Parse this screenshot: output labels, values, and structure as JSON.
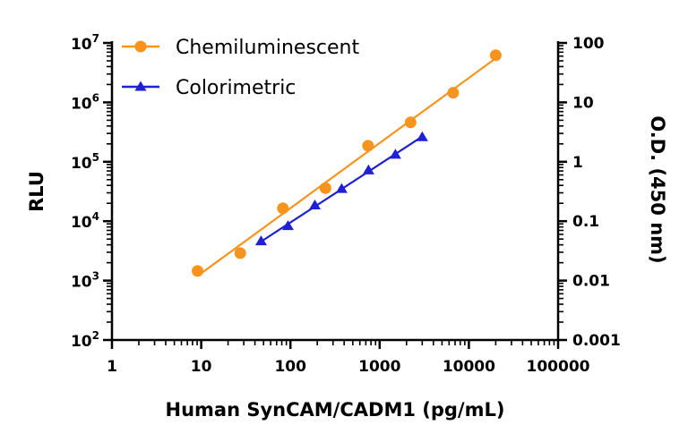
{
  "chart_data": {
    "type": "scatter",
    "title": "",
    "xlabel": "Human SynCAM/CADM1 (pg/mL)",
    "ylabel": "RLU",
    "y2label": "O.D. (450 nm)",
    "x_scale": "log",
    "y_scale": "log",
    "y2_scale": "log",
    "xlim": [
      1,
      100000
    ],
    "ylim": [
      100,
      10000000
    ],
    "y2lim": [
      0.001,
      100
    ],
    "grid": false,
    "legend_position": "top-left",
    "x_ticks": [
      "1",
      "10",
      "100",
      "1000",
      "10000",
      "100000"
    ],
    "y_ticks": [
      {
        "base": "10",
        "exp": "2"
      },
      {
        "base": "10",
        "exp": "3"
      },
      {
        "base": "10",
        "exp": "4"
      },
      {
        "base": "10",
        "exp": "5"
      },
      {
        "base": "10",
        "exp": "6"
      },
      {
        "base": "10",
        "exp": "7"
      }
    ],
    "y2_ticks": [
      "0.001",
      "0.01",
      "0.1",
      "1",
      "10",
      "100"
    ],
    "series": [
      {
        "name": "Chemiluminescent",
        "axis": "left",
        "marker": "circle",
        "color": "#F7941D",
        "x": [
          9.1,
          27.4,
          82.3,
          247,
          741,
          2222,
          6667,
          20000
        ],
        "y": [
          1450,
          2900,
          16500,
          36000,
          186000,
          460000,
          1450000,
          6200000
        ]
      },
      {
        "name": "Colorimetric",
        "axis": "right",
        "marker": "triangle",
        "color": "#1F1FD6",
        "x": [
          46.9,
          93.8,
          188,
          375,
          750,
          1500,
          3000
        ],
        "y": [
          0.046,
          0.083,
          0.185,
          0.35,
          0.72,
          1.32,
          2.6
        ]
      }
    ]
  }
}
